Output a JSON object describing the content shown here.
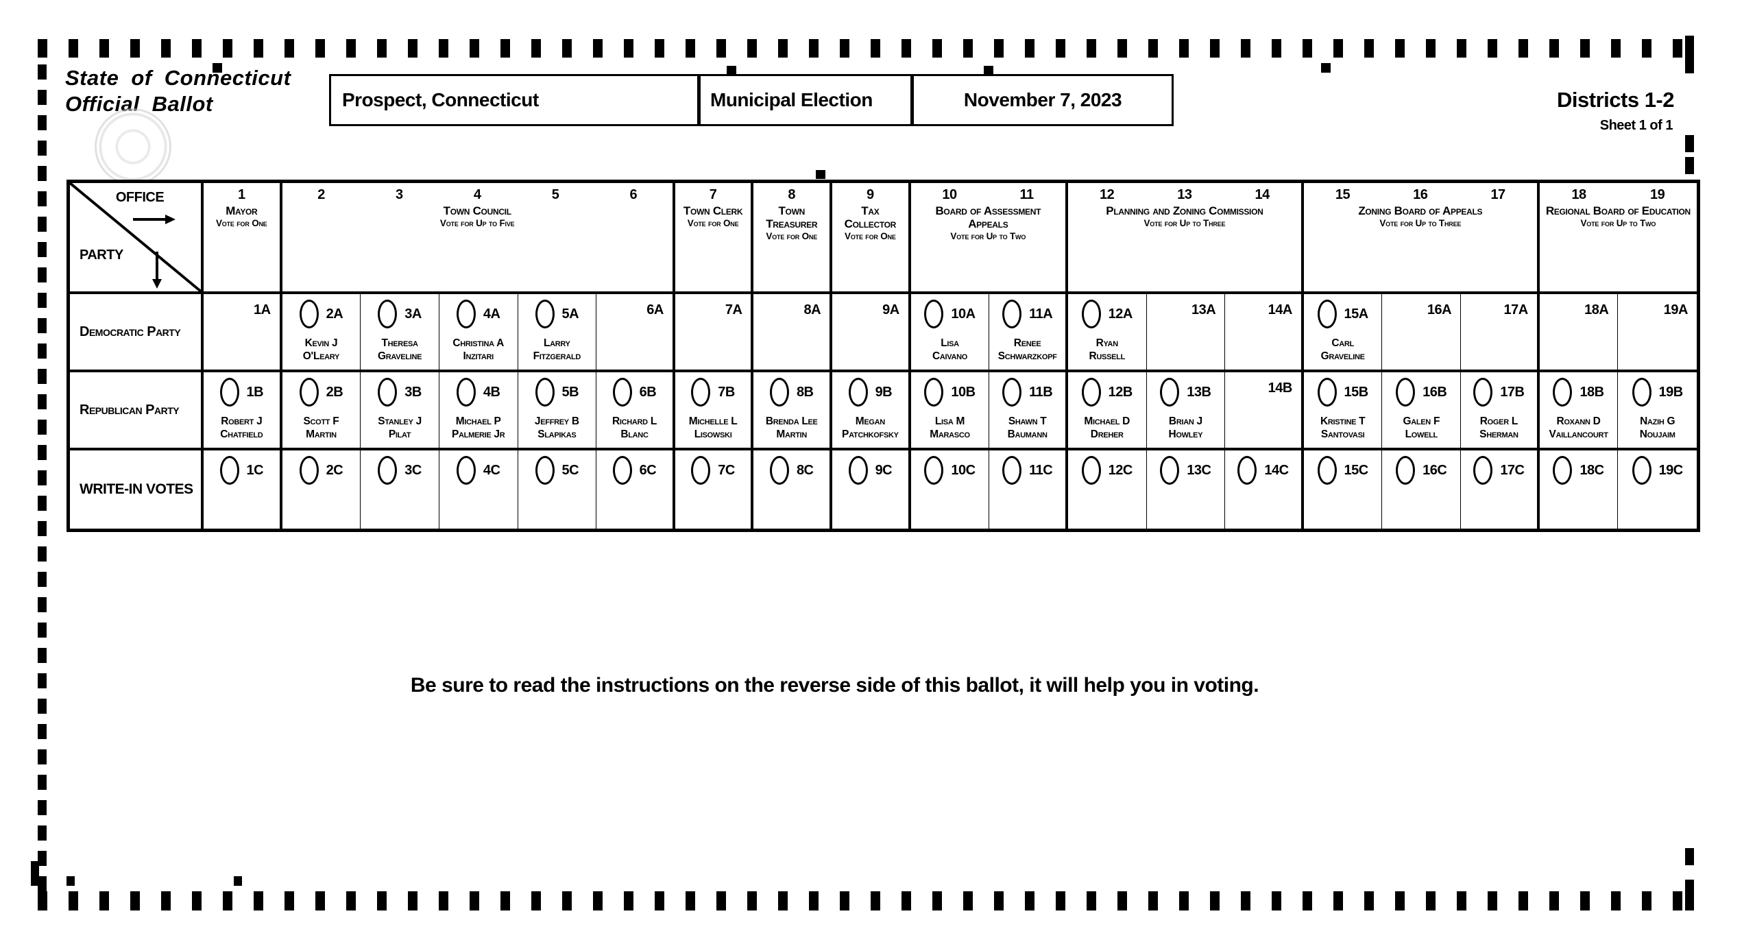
{
  "header": {
    "title_line1": "State of Connecticut",
    "title_line2": "Official Ballot",
    "town": "Prospect, Connecticut",
    "election": "Municipal Election",
    "date": "November 7, 2023",
    "districts": "Districts 1-2",
    "sheet": "Sheet 1 of 1"
  },
  "footer": {
    "note": "Be sure to read the instructions on the reverse side of this ballot, it will help you in voting."
  },
  "grid": {
    "corner": {
      "office_label": "OFFICE",
      "party_label": "PARTY"
    },
    "office_groups": [
      {
        "cols": [
          "1"
        ],
        "name": "Mayor",
        "instruction": "Vote for One"
      },
      {
        "cols": [
          "2",
          "3",
          "4",
          "5",
          "6"
        ],
        "name": "Town Council",
        "instruction": "Vote for Up to Five"
      },
      {
        "cols": [
          "7"
        ],
        "name": "Town Clerk",
        "instruction": "Vote for One"
      },
      {
        "cols": [
          "8"
        ],
        "name": "Town Treasurer",
        "instruction": "Vote for One"
      },
      {
        "cols": [
          "9"
        ],
        "name": "Tax Collector",
        "instruction": "Vote for One"
      },
      {
        "cols": [
          "10",
          "11"
        ],
        "name": "Board of Assessment Appeals",
        "instruction": "Vote for Up to Two"
      },
      {
        "cols": [
          "12",
          "13",
          "14"
        ],
        "name": "Planning and Zoning Commission",
        "instruction": "Vote for Up to Three"
      },
      {
        "cols": [
          "15",
          "16",
          "17"
        ],
        "name": "Zoning Board of Appeals",
        "instruction": "Vote for Up to Three"
      },
      {
        "cols": [
          "18",
          "19"
        ],
        "name": "Regional Board of Education",
        "instruction": "Vote for Up to Two"
      }
    ],
    "rows": [
      {
        "label": "Democratic Party",
        "label_style": "party",
        "cells": [
          {
            "code": "1A",
            "bubble": false
          },
          {
            "code": "2A",
            "bubble": true,
            "name": [
              "Kevin J",
              "O'Leary"
            ]
          },
          {
            "code": "3A",
            "bubble": true,
            "name": [
              "Theresa",
              "Graveline"
            ]
          },
          {
            "code": "4A",
            "bubble": true,
            "name": [
              "Christina A",
              "Inzitari"
            ]
          },
          {
            "code": "5A",
            "bubble": true,
            "name": [
              "Larry",
              "Fitzgerald"
            ]
          },
          {
            "code": "6A",
            "bubble": false
          },
          {
            "code": "7A",
            "bubble": false
          },
          {
            "code": "8A",
            "bubble": false
          },
          {
            "code": "9A",
            "bubble": false
          },
          {
            "code": "10A",
            "bubble": true,
            "name": [
              "Lisa",
              "Caivano"
            ]
          },
          {
            "code": "11A",
            "bubble": true,
            "name": [
              "Renee",
              "Schwarzkopf"
            ]
          },
          {
            "code": "12A",
            "bubble": true,
            "name": [
              "Ryan",
              "Russell"
            ]
          },
          {
            "code": "13A",
            "bubble": false
          },
          {
            "code": "14A",
            "bubble": false
          },
          {
            "code": "15A",
            "bubble": true,
            "name": [
              "Carl",
              "Graveline"
            ]
          },
          {
            "code": "16A",
            "bubble": false
          },
          {
            "code": "17A",
            "bubble": false
          },
          {
            "code": "18A",
            "bubble": false
          },
          {
            "code": "19A",
            "bubble": false
          }
        ]
      },
      {
        "label": "Republican Party",
        "label_style": "party",
        "cells": [
          {
            "code": "1B",
            "bubble": true,
            "name": [
              "Robert J",
              "Chatfield"
            ]
          },
          {
            "code": "2B",
            "bubble": true,
            "name": [
              "Scott F",
              "Martin"
            ]
          },
          {
            "code": "3B",
            "bubble": true,
            "name": [
              "Stanley J",
              "Pilat"
            ]
          },
          {
            "code": "4B",
            "bubble": true,
            "name": [
              "Michael P",
              "Palmerie Jr"
            ]
          },
          {
            "code": "5B",
            "bubble": true,
            "name": [
              "Jeffrey B",
              "Slapikas"
            ]
          },
          {
            "code": "6B",
            "bubble": true,
            "name": [
              "Richard L",
              "Blanc"
            ]
          },
          {
            "code": "7B",
            "bubble": true,
            "name": [
              "Michelle L",
              "Lisowski"
            ]
          },
          {
            "code": "8B",
            "bubble": true,
            "name": [
              "Brenda Lee",
              "Martin"
            ]
          },
          {
            "code": "9B",
            "bubble": true,
            "name": [
              "Megan",
              "Patchkofsky"
            ]
          },
          {
            "code": "10B",
            "bubble": true,
            "name": [
              "Lisa M",
              "Marasco"
            ]
          },
          {
            "code": "11B",
            "bubble": true,
            "name": [
              "Shawn T",
              "Baumann"
            ]
          },
          {
            "code": "12B",
            "bubble": true,
            "name": [
              "Michael D",
              "Dreher"
            ]
          },
          {
            "code": "13B",
            "bubble": true,
            "name": [
              "Brian J",
              "Howley"
            ]
          },
          {
            "code": "14B",
            "bubble": false
          },
          {
            "code": "15B",
            "bubble": true,
            "name": [
              "Kristine T",
              "Santovasi"
            ]
          },
          {
            "code": "16B",
            "bubble": true,
            "name": [
              "Galen F",
              "Lowell"
            ]
          },
          {
            "code": "17B",
            "bubble": true,
            "name": [
              "Roger L",
              "Sherman"
            ]
          },
          {
            "code": "18B",
            "bubble": true,
            "name": [
              "Roxann D",
              "Vaillancourt"
            ]
          },
          {
            "code": "19B",
            "bubble": true,
            "name": [
              "Nazih G",
              "Noujaim"
            ]
          }
        ]
      },
      {
        "label": "WRITE-IN VOTES",
        "label_style": "writein",
        "cells": [
          {
            "code": "1C",
            "bubble": true
          },
          {
            "code": "2C",
            "bubble": true
          },
          {
            "code": "3C",
            "bubble": true
          },
          {
            "code": "4C",
            "bubble": true
          },
          {
            "code": "5C",
            "bubble": true
          },
          {
            "code": "6C",
            "bubble": true
          },
          {
            "code": "7C",
            "bubble": true
          },
          {
            "code": "8C",
            "bubble": true
          },
          {
            "code": "9C",
            "bubble": true
          },
          {
            "code": "10C",
            "bubble": true
          },
          {
            "code": "11C",
            "bubble": true
          },
          {
            "code": "12C",
            "bubble": true
          },
          {
            "code": "13C",
            "bubble": true
          },
          {
            "code": "14C",
            "bubble": true
          },
          {
            "code": "15C",
            "bubble": true
          },
          {
            "code": "16C",
            "bubble": true
          },
          {
            "code": "17C",
            "bubble": true
          },
          {
            "code": "18C",
            "bubble": true
          },
          {
            "code": "19C",
            "bubble": true
          }
        ]
      }
    ]
  }
}
